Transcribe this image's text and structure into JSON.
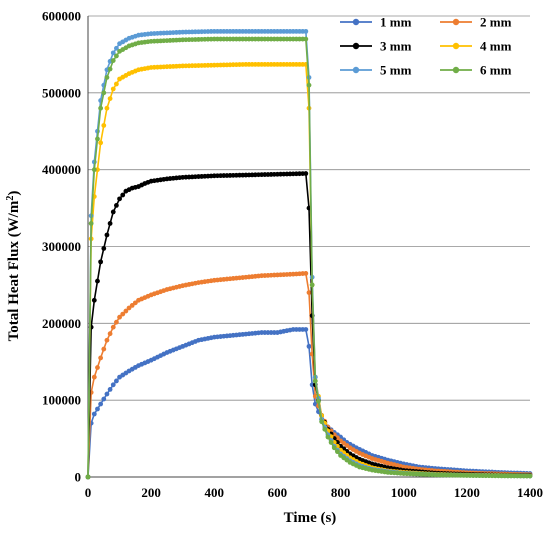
{
  "chart_data": {
    "type": "line",
    "title": "",
    "xlabel": "Time (s)",
    "ylabel_main": "Total Heat Flux (W/m",
    "ylabel_sup": "2",
    "ylabel_tail": ")",
    "xlim": [
      0,
      1400
    ],
    "ylim": [
      0,
      600000
    ],
    "x_ticks": [
      0,
      200,
      400,
      600,
      800,
      1000,
      1200,
      1400
    ],
    "y_ticks": [
      0,
      100000,
      200000,
      300000,
      400000,
      500000,
      600000
    ],
    "x_tick_labels": [
      "0",
      "200",
      "400",
      "600",
      "800",
      "1000",
      "1200",
      "1400"
    ],
    "y_tick_labels": [
      "0",
      "100000",
      "200000",
      "300000",
      "400000",
      "500000",
      "600000"
    ],
    "grid": "horizontal",
    "legend_position": "top-right",
    "series": [
      {
        "name": "1 mm",
        "color": "#4472C4",
        "points": [
          [
            0,
            0
          ],
          [
            10,
            70000
          ],
          [
            20,
            82000
          ],
          [
            40,
            95000
          ],
          [
            60,
            108000
          ],
          [
            80,
            120000
          ],
          [
            100,
            130000
          ],
          [
            130,
            138000
          ],
          [
            160,
            145000
          ],
          [
            200,
            152000
          ],
          [
            250,
            162000
          ],
          [
            300,
            170000
          ],
          [
            350,
            178000
          ],
          [
            400,
            182000
          ],
          [
            450,
            184000
          ],
          [
            500,
            186000
          ],
          [
            550,
            188000
          ],
          [
            600,
            188000
          ],
          [
            650,
            192000
          ],
          [
            690,
            192000
          ],
          [
            700,
            170000
          ],
          [
            710,
            120000
          ],
          [
            720,
            95000
          ],
          [
            740,
            75000
          ],
          [
            760,
            65000
          ],
          [
            780,
            58000
          ],
          [
            800,
            52000
          ],
          [
            820,
            45000
          ],
          [
            850,
            38000
          ],
          [
            880,
            32000
          ],
          [
            900,
            28000
          ],
          [
            950,
            22000
          ],
          [
            1000,
            17000
          ],
          [
            1050,
            13000
          ],
          [
            1100,
            11000
          ],
          [
            1150,
            9500
          ],
          [
            1200,
            8000
          ],
          [
            1300,
            6000
          ],
          [
            1400,
            4500
          ]
        ]
      },
      {
        "name": "2 mm",
        "color": "#ED7D31",
        "points": [
          [
            0,
            0
          ],
          [
            10,
            110000
          ],
          [
            20,
            130000
          ],
          [
            40,
            155000
          ],
          [
            60,
            178000
          ],
          [
            80,
            195000
          ],
          [
            100,
            208000
          ],
          [
            130,
            220000
          ],
          [
            160,
            230000
          ],
          [
            200,
            237000
          ],
          [
            250,
            244000
          ],
          [
            300,
            249000
          ],
          [
            350,
            253000
          ],
          [
            400,
            256000
          ],
          [
            450,
            258000
          ],
          [
            500,
            260000
          ],
          [
            550,
            262000
          ],
          [
            600,
            263000
          ],
          [
            650,
            264000
          ],
          [
            690,
            265000
          ],
          [
            700,
            240000
          ],
          [
            710,
            160000
          ],
          [
            720,
            105000
          ],
          [
            740,
            80000
          ],
          [
            760,
            65000
          ],
          [
            780,
            55000
          ],
          [
            800,
            47000
          ],
          [
            830,
            38000
          ],
          [
            860,
            31000
          ],
          [
            900,
            24000
          ],
          [
            950,
            18000
          ],
          [
            1000,
            13000
          ],
          [
            1050,
            10000
          ],
          [
            1100,
            8000
          ],
          [
            1200,
            5500
          ],
          [
            1300,
            4000
          ],
          [
            1400,
            3000
          ]
        ]
      },
      {
        "name": "3 mm",
        "color": "#000000",
        "points": [
          [
            0,
            0
          ],
          [
            10,
            195000
          ],
          [
            20,
            230000
          ],
          [
            40,
            280000
          ],
          [
            60,
            315000
          ],
          [
            80,
            345000
          ],
          [
            100,
            362000
          ],
          [
            120,
            372000
          ],
          [
            140,
            376000
          ],
          [
            160,
            378000
          ],
          [
            180,
            382000
          ],
          [
            200,
            385000
          ],
          [
            250,
            388000
          ],
          [
            300,
            390000
          ],
          [
            400,
            392000
          ],
          [
            500,
            393000
          ],
          [
            600,
            394000
          ],
          [
            690,
            395000
          ],
          [
            700,
            350000
          ],
          [
            710,
            210000
          ],
          [
            720,
            120000
          ],
          [
            740,
            80000
          ],
          [
            760,
            62000
          ],
          [
            780,
            50000
          ],
          [
            800,
            40000
          ],
          [
            830,
            30000
          ],
          [
            860,
            23000
          ],
          [
            900,
            17000
          ],
          [
            950,
            12000
          ],
          [
            1000,
            8500
          ],
          [
            1100,
            5000
          ],
          [
            1200,
            3500
          ],
          [
            1300,
            2500
          ],
          [
            1400,
            2000
          ]
        ]
      },
      {
        "name": "4 mm",
        "color": "#FFC000",
        "points": [
          [
            0,
            0
          ],
          [
            10,
            310000
          ],
          [
            20,
            365000
          ],
          [
            40,
            435000
          ],
          [
            60,
            480000
          ],
          [
            80,
            505000
          ],
          [
            100,
            518000
          ],
          [
            130,
            525000
          ],
          [
            160,
            530000
          ],
          [
            200,
            533000
          ],
          [
            300,
            535000
          ],
          [
            400,
            536000
          ],
          [
            500,
            537000
          ],
          [
            600,
            537000
          ],
          [
            690,
            537000
          ],
          [
            700,
            480000
          ],
          [
            710,
            250000
          ],
          [
            720,
            130000
          ],
          [
            740,
            80000
          ],
          [
            760,
            60000
          ],
          [
            780,
            45000
          ],
          [
            800,
            35000
          ],
          [
            830,
            25000
          ],
          [
            860,
            18000
          ],
          [
            900,
            12000
          ],
          [
            950,
            8000
          ],
          [
            1000,
            6000
          ],
          [
            1100,
            3500
          ],
          [
            1200,
            2500
          ],
          [
            1300,
            2000
          ],
          [
            1400,
            1500
          ]
        ]
      },
      {
        "name": "5 mm",
        "color": "#5B9BD5",
        "points": [
          [
            0,
            0
          ],
          [
            10,
            340000
          ],
          [
            20,
            410000
          ],
          [
            40,
            490000
          ],
          [
            60,
            530000
          ],
          [
            80,
            552000
          ],
          [
            100,
            564000
          ],
          [
            130,
            571000
          ],
          [
            160,
            575000
          ],
          [
            200,
            577000
          ],
          [
            300,
            579000
          ],
          [
            400,
            580000
          ],
          [
            500,
            580000
          ],
          [
            600,
            580000
          ],
          [
            690,
            580000
          ],
          [
            700,
            520000
          ],
          [
            710,
            260000
          ],
          [
            720,
            130000
          ],
          [
            740,
            75000
          ],
          [
            760,
            55000
          ],
          [
            780,
            40000
          ],
          [
            800,
            30000
          ],
          [
            830,
            21000
          ],
          [
            860,
            15000
          ],
          [
            900,
            10000
          ],
          [
            950,
            7000
          ],
          [
            1000,
            5000
          ],
          [
            1100,
            3000
          ],
          [
            1200,
            2200
          ],
          [
            1300,
            1700
          ],
          [
            1400,
            1300
          ]
        ]
      },
      {
        "name": "6 mm",
        "color": "#70AD47",
        "points": [
          [
            0,
            0
          ],
          [
            10,
            330000
          ],
          [
            20,
            400000
          ],
          [
            40,
            480000
          ],
          [
            60,
            520000
          ],
          [
            80,
            542000
          ],
          [
            100,
            554000
          ],
          [
            130,
            561000
          ],
          [
            160,
            565000
          ],
          [
            200,
            567000
          ],
          [
            300,
            569000
          ],
          [
            400,
            570000
          ],
          [
            500,
            570000
          ],
          [
            600,
            570000
          ],
          [
            690,
            570000
          ],
          [
            700,
            510000
          ],
          [
            710,
            250000
          ],
          [
            720,
            125000
          ],
          [
            740,
            72000
          ],
          [
            760,
            52000
          ],
          [
            780,
            38000
          ],
          [
            800,
            28000
          ],
          [
            830,
            19000
          ],
          [
            860,
            13000
          ],
          [
            900,
            9000
          ],
          [
            950,
            6000
          ],
          [
            1000,
            4500
          ],
          [
            1100,
            2800
          ],
          [
            1200,
            2000
          ],
          [
            1300,
            1500
          ],
          [
            1400,
            1200
          ]
        ]
      }
    ]
  }
}
